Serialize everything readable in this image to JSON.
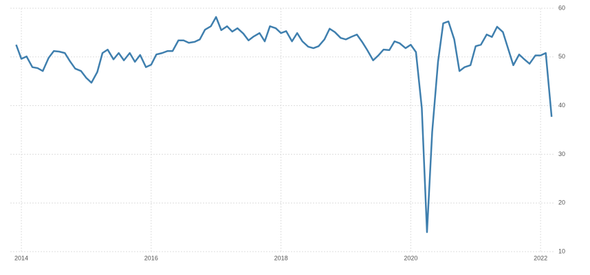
{
  "chart_data": {
    "type": "line",
    "x": [
      2013.92,
      2014,
      2014.08,
      2014.17,
      2014.25,
      2014.33,
      2014.42,
      2014.5,
      2014.58,
      2014.67,
      2014.75,
      2014.83,
      2014.92,
      2015,
      2015.08,
      2015.17,
      2015.25,
      2015.33,
      2015.42,
      2015.5,
      2015.58,
      2015.67,
      2015.75,
      2015.83,
      2015.92,
      2016,
      2016.08,
      2016.17,
      2016.25,
      2016.33,
      2016.42,
      2016.5,
      2016.58,
      2016.67,
      2016.75,
      2016.83,
      2016.92,
      2017,
      2017.08,
      2017.17,
      2017.25,
      2017.33,
      2017.42,
      2017.5,
      2017.58,
      2017.67,
      2017.75,
      2017.83,
      2017.92,
      2018,
      2018.08,
      2018.17,
      2018.25,
      2018.33,
      2018.42,
      2018.5,
      2018.58,
      2018.67,
      2018.75,
      2018.83,
      2018.92,
      2019,
      2019.08,
      2019.17,
      2019.25,
      2019.33,
      2019.42,
      2019.5,
      2019.58,
      2019.67,
      2019.75,
      2019.83,
      2019.92,
      2020,
      2020.08,
      2020.17,
      2020.25,
      2020.33,
      2020.42,
      2020.5,
      2020.58,
      2020.67,
      2020.75,
      2020.83,
      2020.92,
      2021,
      2021.08,
      2021.17,
      2021.25,
      2021.33,
      2021.42,
      2021.5,
      2021.58,
      2021.67,
      2021.75,
      2021.83,
      2021.92,
      2022,
      2022.08,
      2022.17
    ],
    "series": [
      {
        "color": "#3f7fae",
        "values": [
          52.5,
          49.6,
          50.1,
          47.9,
          47.7,
          47.1,
          49.8,
          51.2,
          51.1,
          50.8,
          49.1,
          47.6,
          47.1,
          45.7,
          44.7,
          46.9,
          50.8,
          51.5,
          49.5,
          50.8,
          49.3,
          50.8,
          49.0,
          50.4,
          47.9,
          48.4,
          50.5,
          50.8,
          51.2,
          51.2,
          53.4,
          53.4,
          52.9,
          53.1,
          53.6,
          55.6,
          56.3,
          58.2,
          55.5,
          56.3,
          55.2,
          55.9,
          54.8,
          53.4,
          54.2,
          54.9,
          53.2,
          56.3,
          55.9,
          54.9,
          55.3,
          53.2,
          54.9,
          53.2,
          52.1,
          51.8,
          52.2,
          53.6,
          55.8,
          55.1,
          53.9,
          53.6,
          54.1,
          54.6,
          53.1,
          51.4,
          49.3,
          50.3,
          51.5,
          51.4,
          53.2,
          52.8,
          51.8,
          52.5,
          51.0,
          39.5,
          14.0,
          34.6,
          49.0,
          56.9,
          57.3,
          53.6,
          47.1,
          47.9,
          48.3,
          52.2,
          52.5,
          54.6,
          54.1,
          56.2,
          55.1,
          51.7,
          48.3,
          50.5,
          49.5,
          48.6,
          50.3,
          50.3,
          50.8,
          37.7
        ]
      }
    ],
    "xlim": [
      2013.83,
      2022.2
    ],
    "xticks": [
      2014,
      2016,
      2018,
      2020,
      2022
    ],
    "ylim": [
      10,
      60
    ],
    "yticks": [
      10,
      20,
      30,
      40,
      50,
      60
    ],
    "grid": true
  }
}
